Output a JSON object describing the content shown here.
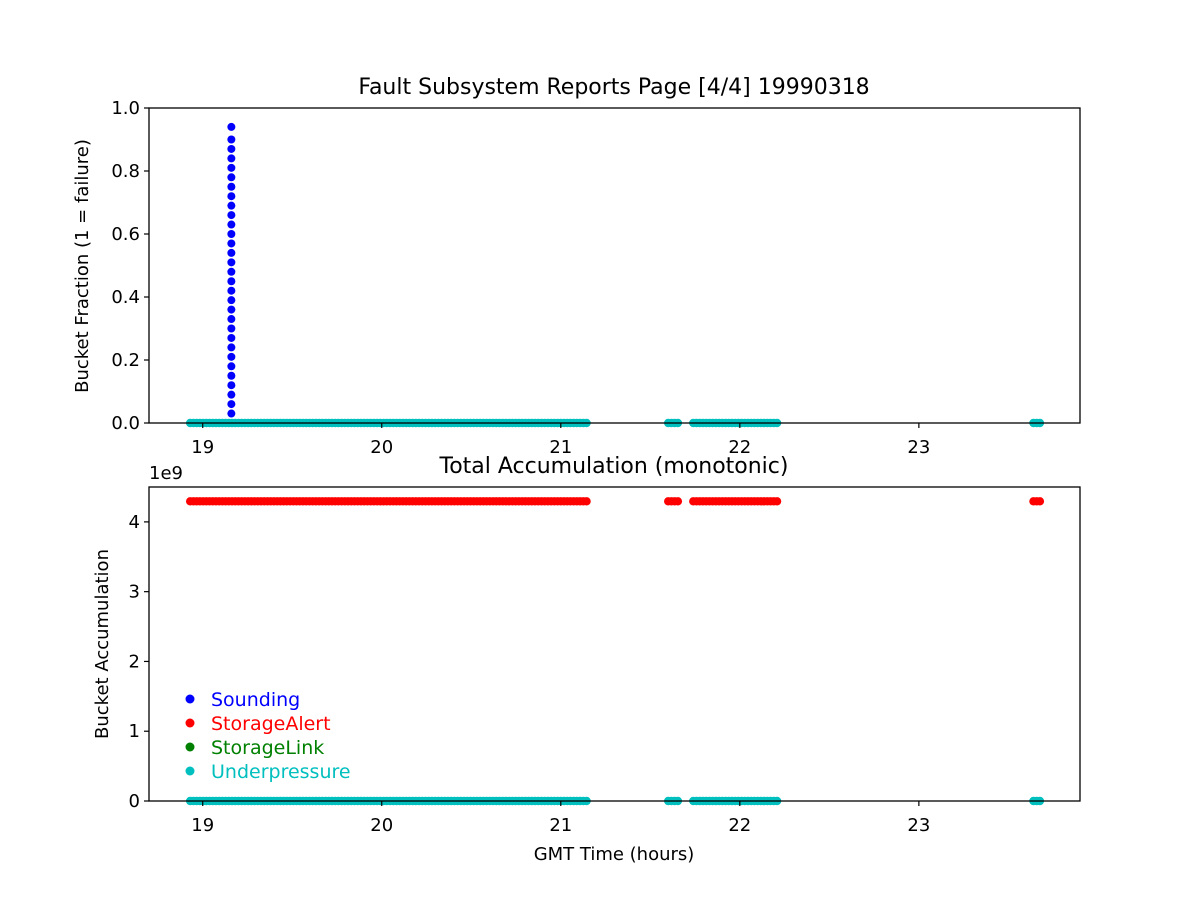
{
  "colors": {
    "Sounding": "#0000ff",
    "StorageAlert": "#ff0000",
    "StorageLink": "#008000",
    "Underpressure": "#00bfbf"
  },
  "chart_data": [
    {
      "type": "scatter",
      "title": "Fault Subsystem Reports Page [4/4] 19990318",
      "xlabel": "",
      "ylabel": "Bucket Fraction (1 = failure)",
      "xlim": [
        18.7,
        23.9
      ],
      "ylim": [
        0.0,
        1.0
      ],
      "xticks": [
        19,
        20,
        21,
        22,
        23
      ],
      "yticks": [
        0.0,
        0.2,
        0.4,
        0.6,
        0.8,
        1.0
      ],
      "xtick_labels": [
        "19",
        "20",
        "21",
        "22",
        "23"
      ],
      "ytick_labels": [
        "0.0",
        "0.2",
        "0.4",
        "0.6",
        "0.8",
        "1.0"
      ],
      "grid": false,
      "series": [
        {
          "name": "Sounding",
          "color": "#0000ff",
          "x": [
            19.16,
            19.16,
            19.16,
            19.16,
            19.16,
            19.16,
            19.16,
            19.16,
            19.16,
            19.16,
            19.16,
            19.16,
            19.16,
            19.16,
            19.16,
            19.16,
            19.16,
            19.16,
            19.16,
            19.16,
            19.16,
            19.16,
            19.16,
            19.16,
            19.16,
            19.16,
            19.16,
            19.16,
            19.16,
            19.16,
            19.16,
            19.16
          ],
          "y": [
            0.0,
            0.03,
            0.06,
            0.09,
            0.12,
            0.15,
            0.18,
            0.21,
            0.24,
            0.27,
            0.3,
            0.33,
            0.36,
            0.39,
            0.42,
            0.45,
            0.48,
            0.51,
            0.54,
            0.57,
            0.6,
            0.63,
            0.66,
            0.69,
            0.72,
            0.75,
            0.78,
            0.81,
            0.84,
            0.87,
            0.9,
            0.94
          ]
        },
        {
          "name": "Underpressure",
          "color": "#00bfbf",
          "segments": [
            [
              18.93,
              21.16
            ],
            [
              21.6,
              21.67
            ],
            [
              21.74,
              22.22
            ],
            [
              23.64,
              23.68
            ]
          ],
          "y_const": 0.0
        }
      ]
    },
    {
      "type": "scatter",
      "title": "Total Accumulation (monotonic)",
      "xlabel": "GMT Time (hours)",
      "ylabel": "Bucket Accumulation",
      "offset_text": "1e9",
      "xlim": [
        18.7,
        23.9
      ],
      "ylim": [
        0.0,
        4.5
      ],
      "xticks": [
        19,
        20,
        21,
        22,
        23
      ],
      "yticks": [
        0,
        1,
        2,
        3,
        4
      ],
      "xtick_labels": [
        "19",
        "20",
        "21",
        "22",
        "23"
      ],
      "ytick_labels": [
        "0",
        "1",
        "2",
        "3",
        "4"
      ],
      "grid": false,
      "legend": {
        "placement": "lower-left",
        "entries": [
          "Sounding",
          "StorageAlert",
          "StorageLink",
          "Underpressure"
        ]
      },
      "series": [
        {
          "name": "StorageAlert",
          "color": "#ff0000",
          "segments": [
            [
              18.93,
              21.16
            ],
            [
              21.6,
              21.67
            ],
            [
              21.74,
              22.22
            ],
            [
              23.64,
              23.68
            ]
          ],
          "y_const": 4.295
        },
        {
          "name": "Underpressure",
          "color": "#00bfbf",
          "segments": [
            [
              18.93,
              21.16
            ],
            [
              21.6,
              21.67
            ],
            [
              21.74,
              22.22
            ],
            [
              23.64,
              23.68
            ]
          ],
          "y_const": 0.0
        }
      ]
    }
  ]
}
